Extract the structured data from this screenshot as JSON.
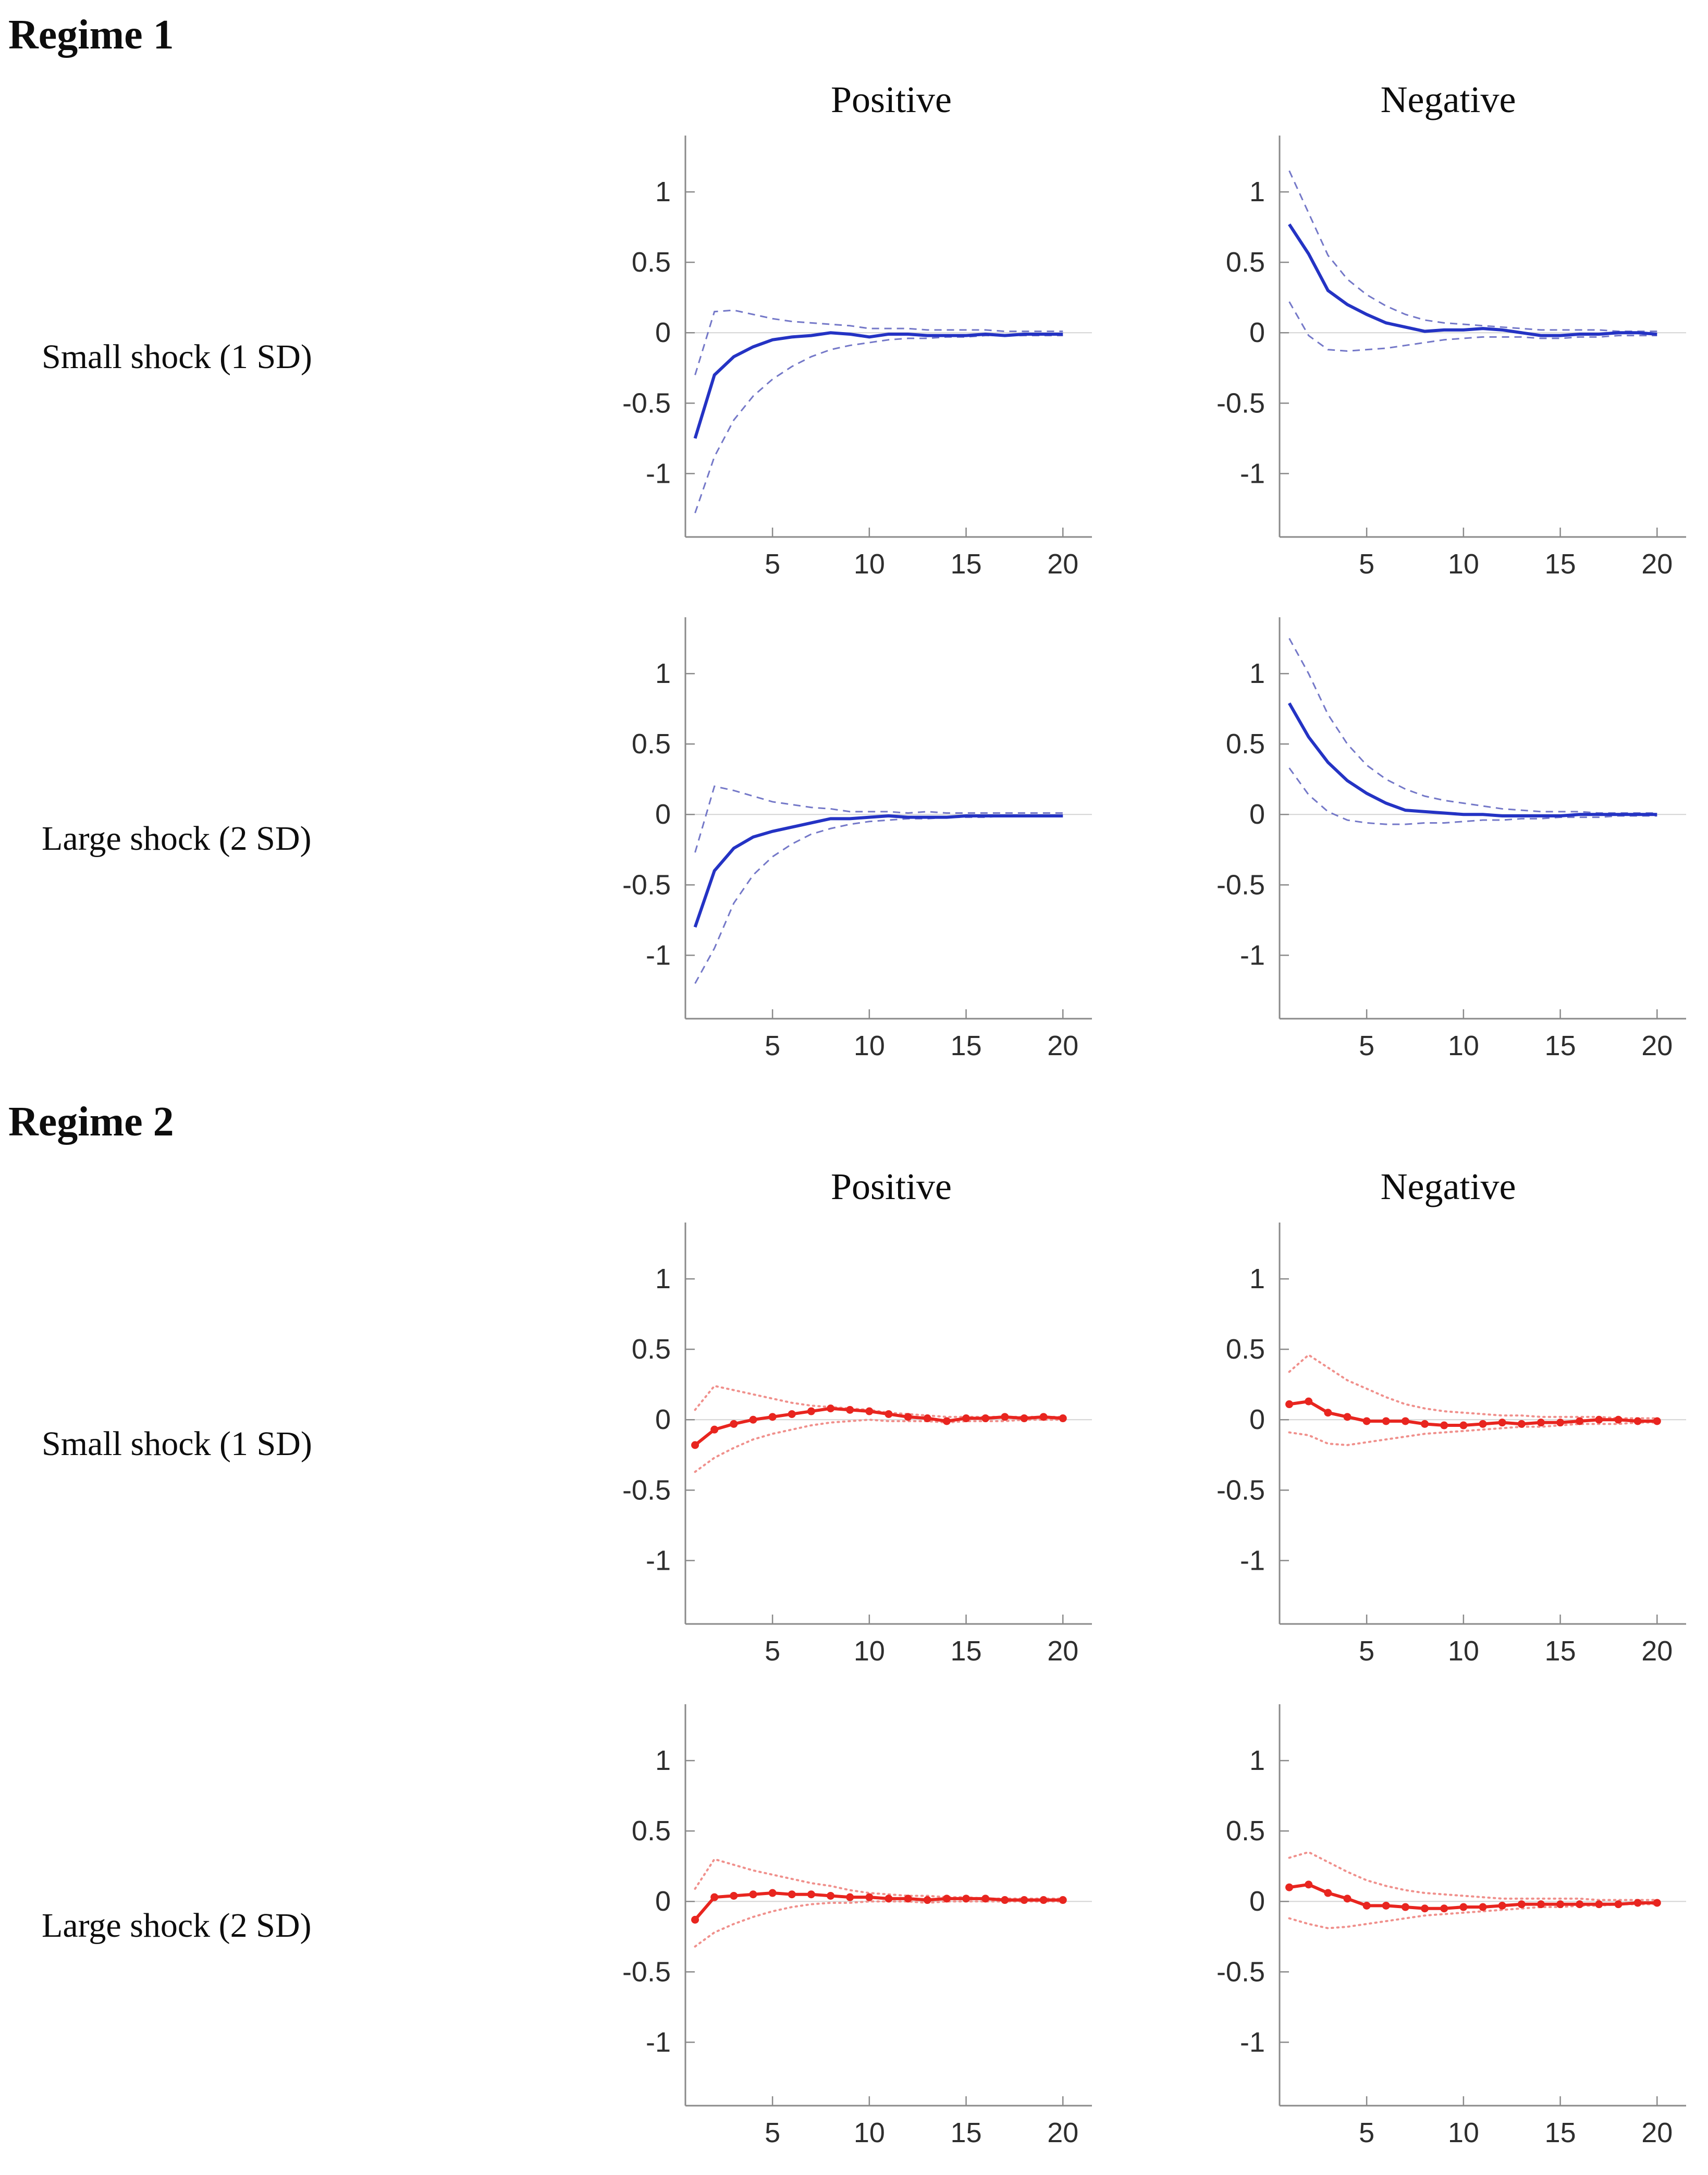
{
  "page": {
    "regime1_title": "Regime 1",
    "regime2_title": "Regime 2",
    "column_titles": {
      "positive": "Positive",
      "negative": "Negative"
    },
    "row_labels": {
      "small": "Small shock (1 SD)",
      "large": "Large shock (2 SD)"
    }
  },
  "styles": {
    "axis_color": "#8a8a8a",
    "zero_line_color": "#d4d4d4",
    "tick_label_color": "#2e2e2e",
    "regime1_line_color": "#2433c4",
    "regime1_band_color": "#7478c8",
    "regime2_line_color": "#e8251f",
    "regime2_band_color": "#f0908c"
  },
  "chart_data": [
    {
      "id": "regime1-small-positive",
      "type": "line",
      "regime": "Regime 1",
      "shock": "Small shock (1 SD)",
      "direction": "Positive",
      "x": [
        1,
        2,
        3,
        4,
        5,
        6,
        7,
        8,
        9,
        10,
        11,
        12,
        13,
        14,
        15,
        16,
        17,
        18,
        19,
        20
      ],
      "xticks": [
        5,
        10,
        15,
        20
      ],
      "yticks": [
        1,
        0.5,
        0,
        -0.5,
        -1
      ],
      "xlim": [
        0.5,
        21.5
      ],
      "ylim": [
        -1.45,
        1.4
      ],
      "grid": false,
      "legend": "none",
      "series": [
        {
          "name": "upper-band",
          "style": "dashed",
          "markers": false,
          "color": "#7478c8",
          "values": [
            -0.3,
            0.15,
            0.16,
            0.13,
            0.1,
            0.08,
            0.07,
            0.06,
            0.05,
            0.03,
            0.03,
            0.03,
            0.02,
            0.02,
            0.02,
            0.02,
            0.01,
            0.01,
            0.01,
            0.01
          ]
        },
        {
          "name": "lower-band",
          "style": "dashed",
          "markers": false,
          "color": "#7478c8",
          "values": [
            -1.28,
            -0.88,
            -0.62,
            -0.45,
            -0.33,
            -0.24,
            -0.17,
            -0.12,
            -0.09,
            -0.07,
            -0.05,
            -0.04,
            -0.04,
            -0.03,
            -0.03,
            -0.02,
            -0.02,
            -0.02,
            -0.02,
            -0.02
          ]
        },
        {
          "name": "irf",
          "style": "solid",
          "markers": false,
          "color": "#2433c4",
          "values": [
            -0.75,
            -0.3,
            -0.17,
            -0.1,
            -0.05,
            -0.03,
            -0.02,
            0.0,
            -0.01,
            -0.03,
            -0.01,
            -0.01,
            -0.02,
            -0.02,
            -0.02,
            -0.01,
            -0.02,
            -0.01,
            -0.01,
            -0.01
          ]
        }
      ]
    },
    {
      "id": "regime1-small-negative",
      "type": "line",
      "regime": "Regime 1",
      "shock": "Small shock (1 SD)",
      "direction": "Negative",
      "x": [
        1,
        2,
        3,
        4,
        5,
        6,
        7,
        8,
        9,
        10,
        11,
        12,
        13,
        14,
        15,
        16,
        17,
        18,
        19,
        20
      ],
      "xticks": [
        5,
        10,
        15,
        20
      ],
      "yticks": [
        1,
        0.5,
        0,
        -0.5,
        -1
      ],
      "xlim": [
        0.5,
        21.5
      ],
      "ylim": [
        -1.45,
        1.4
      ],
      "grid": false,
      "legend": "none",
      "series": [
        {
          "name": "upper-band",
          "style": "dashed",
          "markers": false,
          "color": "#7478c8",
          "values": [
            1.15,
            0.85,
            0.55,
            0.38,
            0.27,
            0.19,
            0.13,
            0.09,
            0.07,
            0.06,
            0.05,
            0.04,
            0.03,
            0.02,
            0.02,
            0.02,
            0.02,
            0.01,
            0.01,
            0.01
          ]
        },
        {
          "name": "lower-band",
          "style": "dashed",
          "markers": false,
          "color": "#7478c8",
          "values": [
            0.22,
            -0.02,
            -0.12,
            -0.13,
            -0.12,
            -0.11,
            -0.09,
            -0.07,
            -0.05,
            -0.04,
            -0.03,
            -0.03,
            -0.03,
            -0.04,
            -0.04,
            -0.03,
            -0.03,
            -0.02,
            -0.02,
            -0.02
          ]
        },
        {
          "name": "irf",
          "style": "solid",
          "markers": false,
          "color": "#2433c4",
          "values": [
            0.77,
            0.56,
            0.3,
            0.2,
            0.13,
            0.07,
            0.04,
            0.01,
            0.02,
            0.02,
            0.03,
            0.02,
            0.0,
            -0.02,
            -0.02,
            -0.01,
            -0.01,
            0.0,
            0.0,
            -0.01
          ]
        }
      ]
    },
    {
      "id": "regime1-large-positive",
      "type": "line",
      "regime": "Regime 1",
      "shock": "Large shock (2 SD)",
      "direction": "Positive",
      "x": [
        1,
        2,
        3,
        4,
        5,
        6,
        7,
        8,
        9,
        10,
        11,
        12,
        13,
        14,
        15,
        16,
        17,
        18,
        19,
        20
      ],
      "xticks": [
        5,
        10,
        15,
        20
      ],
      "yticks": [
        1,
        0.5,
        0,
        -0.5,
        -1
      ],
      "xlim": [
        0.5,
        21.5
      ],
      "ylim": [
        -1.45,
        1.4
      ],
      "grid": false,
      "legend": "none",
      "series": [
        {
          "name": "upper-band",
          "style": "dashed",
          "markers": false,
          "color": "#7478c8",
          "values": [
            -0.27,
            0.2,
            0.17,
            0.13,
            0.09,
            0.07,
            0.05,
            0.04,
            0.02,
            0.02,
            0.02,
            0.01,
            0.02,
            0.01,
            0.01,
            0.01,
            0.01,
            0.01,
            0.01,
            0.01
          ]
        },
        {
          "name": "lower-band",
          "style": "dashed",
          "markers": false,
          "color": "#7478c8",
          "values": [
            -1.2,
            -0.95,
            -0.63,
            -0.43,
            -0.3,
            -0.21,
            -0.14,
            -0.1,
            -0.07,
            -0.05,
            -0.04,
            -0.03,
            -0.03,
            -0.02,
            -0.02,
            -0.02,
            -0.01,
            -0.01,
            -0.01,
            -0.01
          ]
        },
        {
          "name": "irf",
          "style": "solid",
          "markers": false,
          "color": "#2433c4",
          "values": [
            -0.8,
            -0.4,
            -0.24,
            -0.16,
            -0.12,
            -0.09,
            -0.06,
            -0.03,
            -0.03,
            -0.02,
            -0.01,
            -0.02,
            -0.02,
            -0.02,
            -0.01,
            -0.01,
            -0.01,
            -0.01,
            -0.01,
            -0.01
          ]
        }
      ]
    },
    {
      "id": "regime1-large-negative",
      "type": "line",
      "regime": "Regime 1",
      "shock": "Large shock (2 SD)",
      "direction": "Negative",
      "x": [
        1,
        2,
        3,
        4,
        5,
        6,
        7,
        8,
        9,
        10,
        11,
        12,
        13,
        14,
        15,
        16,
        17,
        18,
        19,
        20
      ],
      "xticks": [
        5,
        10,
        15,
        20
      ],
      "yticks": [
        1,
        0.5,
        0,
        -0.5,
        -1
      ],
      "xlim": [
        0.5,
        21.5
      ],
      "ylim": [
        -1.45,
        1.4
      ],
      "grid": false,
      "legend": "none",
      "series": [
        {
          "name": "upper-band",
          "style": "dashed",
          "markers": false,
          "color": "#7478c8",
          "values": [
            1.25,
            1.0,
            0.71,
            0.5,
            0.35,
            0.25,
            0.18,
            0.13,
            0.1,
            0.08,
            0.06,
            0.04,
            0.03,
            0.02,
            0.02,
            0.02,
            0.01,
            0.01,
            0.01,
            0.01
          ]
        },
        {
          "name": "lower-band",
          "style": "dashed",
          "markers": false,
          "color": "#7478c8",
          "values": [
            0.33,
            0.14,
            0.02,
            -0.04,
            -0.06,
            -0.07,
            -0.07,
            -0.06,
            -0.06,
            -0.05,
            -0.04,
            -0.04,
            -0.03,
            -0.03,
            -0.02,
            -0.02,
            -0.02,
            -0.01,
            -0.01,
            -0.01
          ]
        },
        {
          "name": "irf",
          "style": "solid",
          "markers": false,
          "color": "#2433c4",
          "values": [
            0.79,
            0.55,
            0.37,
            0.24,
            0.15,
            0.08,
            0.03,
            0.02,
            0.01,
            0.0,
            0.0,
            -0.01,
            -0.01,
            -0.01,
            -0.01,
            0.0,
            0.0,
            0.0,
            0.0,
            0.0
          ]
        }
      ]
    },
    {
      "id": "regime2-small-positive",
      "type": "line",
      "regime": "Regime 2",
      "shock": "Small shock (1 SD)",
      "direction": "Positive",
      "x": [
        1,
        2,
        3,
        4,
        5,
        6,
        7,
        8,
        9,
        10,
        11,
        12,
        13,
        14,
        15,
        16,
        17,
        18,
        19,
        20
      ],
      "xticks": [
        5,
        10,
        15,
        20
      ],
      "yticks": [
        1,
        0.5,
        0,
        -0.5,
        -1
      ],
      "xlim": [
        0.5,
        21.5
      ],
      "ylim": [
        -1.45,
        1.4
      ],
      "grid": false,
      "legend": "none",
      "series": [
        {
          "name": "upper-band",
          "style": "dotted",
          "markers": false,
          "color": "#f0908c",
          "values": [
            0.07,
            0.24,
            0.21,
            0.18,
            0.15,
            0.12,
            0.1,
            0.09,
            0.08,
            0.07,
            0.05,
            0.04,
            0.03,
            0.02,
            0.02,
            0.02,
            0.02,
            0.02,
            0.02,
            0.02
          ]
        },
        {
          "name": "lower-band",
          "style": "dotted",
          "markers": false,
          "color": "#f0908c",
          "values": [
            -0.37,
            -0.27,
            -0.2,
            -0.14,
            -0.1,
            -0.07,
            -0.04,
            -0.02,
            -0.01,
            0.0,
            -0.01,
            -0.01,
            -0.01,
            -0.02,
            -0.01,
            -0.01,
            -0.01,
            0.0,
            0.0,
            0.0
          ]
        },
        {
          "name": "irf",
          "style": "solid",
          "markers": true,
          "color": "#e8251f",
          "values": [
            -0.18,
            -0.07,
            -0.03,
            0.0,
            0.02,
            0.04,
            0.06,
            0.08,
            0.07,
            0.06,
            0.04,
            0.02,
            0.01,
            -0.01,
            0.01,
            0.01,
            0.02,
            0.01,
            0.02,
            0.01
          ]
        }
      ]
    },
    {
      "id": "regime2-small-negative",
      "type": "line",
      "regime": "Regime 2",
      "shock": "Small shock (1 SD)",
      "direction": "Negative",
      "x": [
        1,
        2,
        3,
        4,
        5,
        6,
        7,
        8,
        9,
        10,
        11,
        12,
        13,
        14,
        15,
        16,
        17,
        18,
        19,
        20
      ],
      "xticks": [
        5,
        10,
        15,
        20
      ],
      "yticks": [
        1,
        0.5,
        0,
        -0.5,
        -1
      ],
      "xlim": [
        0.5,
        21.5
      ],
      "ylim": [
        -1.45,
        1.4
      ],
      "grid": false,
      "legend": "none",
      "series": [
        {
          "name": "upper-band",
          "style": "dotted",
          "markers": false,
          "color": "#f0908c",
          "values": [
            0.34,
            0.46,
            0.37,
            0.28,
            0.22,
            0.16,
            0.11,
            0.08,
            0.06,
            0.05,
            0.04,
            0.03,
            0.03,
            0.02,
            0.02,
            0.02,
            0.02,
            0.01,
            0.01,
            0.01
          ]
        },
        {
          "name": "lower-band",
          "style": "dotted",
          "markers": false,
          "color": "#f0908c",
          "values": [
            -0.09,
            -0.11,
            -0.17,
            -0.18,
            -0.16,
            -0.14,
            -0.12,
            -0.1,
            -0.09,
            -0.08,
            -0.07,
            -0.06,
            -0.05,
            -0.05,
            -0.04,
            -0.03,
            -0.03,
            -0.03,
            -0.02,
            -0.02
          ]
        },
        {
          "name": "irf",
          "style": "solid",
          "markers": true,
          "color": "#e8251f",
          "values": [
            0.11,
            0.13,
            0.05,
            0.02,
            -0.01,
            -0.01,
            -0.01,
            -0.03,
            -0.04,
            -0.04,
            -0.03,
            -0.02,
            -0.03,
            -0.02,
            -0.02,
            -0.01,
            0.0,
            0.0,
            -0.01,
            -0.01
          ]
        }
      ]
    },
    {
      "id": "regime2-large-positive",
      "type": "line",
      "regime": "Regime 2",
      "shock": "Large shock (2 SD)",
      "direction": "Positive",
      "x": [
        1,
        2,
        3,
        4,
        5,
        6,
        7,
        8,
        9,
        10,
        11,
        12,
        13,
        14,
        15,
        16,
        17,
        18,
        19,
        20
      ],
      "xticks": [
        5,
        10,
        15,
        20
      ],
      "yticks": [
        1,
        0.5,
        0,
        -0.5,
        -1
      ],
      "xlim": [
        0.5,
        21.5
      ],
      "ylim": [
        -1.45,
        1.4
      ],
      "grid": false,
      "legend": "none",
      "series": [
        {
          "name": "upper-band",
          "style": "dotted",
          "markers": false,
          "color": "#f0908c",
          "values": [
            0.09,
            0.3,
            0.26,
            0.22,
            0.19,
            0.16,
            0.13,
            0.11,
            0.08,
            0.06,
            0.05,
            0.04,
            0.04,
            0.03,
            0.03,
            0.02,
            0.02,
            0.02,
            0.02,
            0.02
          ]
        },
        {
          "name": "lower-band",
          "style": "dotted",
          "markers": false,
          "color": "#f0908c",
          "values": [
            -0.32,
            -0.22,
            -0.16,
            -0.11,
            -0.07,
            -0.04,
            -0.02,
            -0.01,
            -0.01,
            0.0,
            0.0,
            0.0,
            -0.01,
            0.0,
            0.0,
            0.0,
            0.0,
            0.0,
            0.0,
            0.0
          ]
        },
        {
          "name": "irf",
          "style": "solid",
          "markers": true,
          "color": "#e8251f",
          "values": [
            -0.13,
            0.03,
            0.04,
            0.05,
            0.06,
            0.05,
            0.05,
            0.04,
            0.03,
            0.03,
            0.02,
            0.02,
            0.01,
            0.02,
            0.02,
            0.02,
            0.01,
            0.01,
            0.01,
            0.01
          ]
        }
      ]
    },
    {
      "id": "regime2-large-negative",
      "type": "line",
      "regime": "Regime 2",
      "shock": "Large shock (2 SD)",
      "direction": "Negative",
      "x": [
        1,
        2,
        3,
        4,
        5,
        6,
        7,
        8,
        9,
        10,
        11,
        12,
        13,
        14,
        15,
        16,
        17,
        18,
        19,
        20
      ],
      "xticks": [
        5,
        10,
        15,
        20
      ],
      "yticks": [
        1,
        0.5,
        0,
        -0.5,
        -1
      ],
      "xlim": [
        0.5,
        21.5
      ],
      "ylim": [
        -1.45,
        1.4
      ],
      "grid": false,
      "legend": "none",
      "series": [
        {
          "name": "upper-band",
          "style": "dotted",
          "markers": false,
          "color": "#f0908c",
          "values": [
            0.31,
            0.35,
            0.28,
            0.21,
            0.15,
            0.11,
            0.08,
            0.06,
            0.05,
            0.04,
            0.03,
            0.02,
            0.02,
            0.02,
            0.02,
            0.02,
            0.01,
            0.01,
            0.01,
            0.01
          ]
        },
        {
          "name": "lower-band",
          "style": "dotted",
          "markers": false,
          "color": "#f0908c",
          "values": [
            -0.12,
            -0.16,
            -0.19,
            -0.18,
            -0.16,
            -0.14,
            -0.12,
            -0.1,
            -0.09,
            -0.08,
            -0.07,
            -0.06,
            -0.05,
            -0.04,
            -0.04,
            -0.03,
            -0.03,
            -0.02,
            -0.02,
            -0.02
          ]
        },
        {
          "name": "irf",
          "style": "solid",
          "markers": true,
          "color": "#e8251f",
          "values": [
            0.1,
            0.12,
            0.06,
            0.02,
            -0.03,
            -0.03,
            -0.04,
            -0.05,
            -0.05,
            -0.04,
            -0.04,
            -0.03,
            -0.02,
            -0.02,
            -0.02,
            -0.02,
            -0.02,
            -0.02,
            -0.01,
            -0.01
          ]
        }
      ]
    }
  ]
}
